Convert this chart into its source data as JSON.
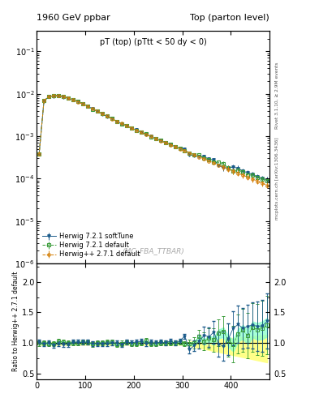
{
  "title_left": "1960 GeV ppbar",
  "title_right": "Top (parton level)",
  "main_title": "pT (top) (pTtt < 50 dy < 0)",
  "watermark": "(MC_FBA_TTBAR)",
  "right_label_top": "Rivet 3.1.10, ≥ 2.9M events",
  "right_label_bottom": "mcplots.cern.ch [arXiv:1306.3436]",
  "ylabel_ratio": "Ratio to Herwig++ 2.7.1 default",
  "xlim": [
    0,
    480
  ],
  "ylim_main": [
    1e-06,
    0.3
  ],
  "ylim_ratio": [
    0.4,
    2.3
  ],
  "xticks": [
    0,
    100,
    200,
    300,
    400
  ],
  "yticks_ratio": [
    0.5,
    1.0,
    1.5,
    2.0
  ],
  "colors": {
    "herwig_pp": "#d4800a",
    "herwig_721_default": "#3a9c3a",
    "herwig_721_soft": "#1a5a8a",
    "band_yellow": "#ffff88",
    "band_green": "#88ffcc"
  },
  "legend": [
    {
      "label": "Herwig++ 2.7.1 default",
      "color": "#d4800a",
      "marker": "o",
      "ls": "--"
    },
    {
      "label": "Herwig 7.2.1 default",
      "color": "#3a9c3a",
      "marker": "s",
      "ls": "--"
    },
    {
      "label": "Herwig 7.2.1 softTune",
      "color": "#1a5a8a",
      "marker": "v",
      "ls": "-"
    }
  ],
  "background_color": "#ffffff"
}
